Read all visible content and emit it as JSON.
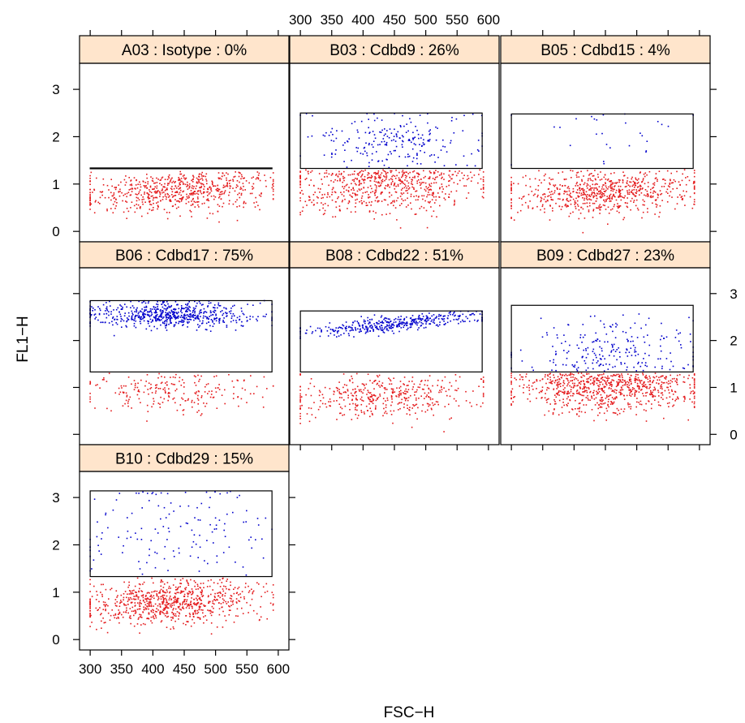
{
  "chart_data": {
    "type": "scatter",
    "xlabel": "FSC−H",
    "ylabel": "FL1−H",
    "x_ticks": [
      300,
      350,
      400,
      450,
      500,
      550,
      600
    ],
    "y_ticks": [
      0,
      1,
      2,
      3
    ],
    "xlim": [
      283,
      617
    ],
    "ylim": [
      -0.22,
      3.55
    ],
    "point_colors": {
      "outside_gate": "#e41a1c",
      "inside_gate": "#0000cc"
    },
    "strip_color": "#ffe5cc",
    "layout": {
      "columns": 3,
      "rows": 3
    },
    "panels": [
      {
        "strip": "A03 : Isotype : 0%",
        "well": "A03",
        "reagent": "Isotype",
        "percent_in_gate": 0,
        "gate": {
          "x": [
            300,
            590
          ],
          "y": [
            1.33,
            1.34
          ]
        },
        "n_outside": 650,
        "n_inside": 0,
        "red_cloud": {
          "x_mean": 440,
          "x_sd": 75,
          "y_mean": 0.85,
          "y_sd": 0.22,
          "y_slope": 0.0006,
          "y_max": 1.27
        },
        "blue_cloud": null
      },
      {
        "strip": "B03 : Cdbd9 : 26%",
        "well": "B03",
        "reagent": "Cdbd9",
        "percent_in_gate": 26,
        "gate": {
          "x": [
            300,
            590
          ],
          "y": [
            1.33,
            2.5
          ]
        },
        "n_outside": 620,
        "n_inside": 220,
        "red_cloud": {
          "x_mean": 440,
          "x_sd": 75,
          "y_mean": 0.95,
          "y_sd": 0.3,
          "y_slope": 0.0006,
          "y_max": 1.3
        },
        "blue_cloud": {
          "x_mean": 450,
          "x_sd": 65,
          "y_mean": 1.9,
          "y_sd": 0.3
        }
      },
      {
        "strip": "B05 : Cdbd15 : 4%",
        "well": "B05",
        "reagent": "Cdbd15",
        "percent_in_gate": 4,
        "gate": {
          "x": [
            300,
            590
          ],
          "y": [
            1.33,
            2.48
          ]
        },
        "n_outside": 700,
        "n_inside": 28,
        "red_cloud": {
          "x_mean": 450,
          "x_sd": 75,
          "y_mean": 0.82,
          "y_sd": 0.23,
          "y_slope": 0.0006,
          "y_max": 1.3
        },
        "blue_cloud": {
          "x_mean": 460,
          "x_sd": 80,
          "y_mean": 1.95,
          "y_sd": 0.35
        }
      },
      {
        "strip": "B06 : Cdbd17 : 75%",
        "well": "B06",
        "reagent": "Cdbd17",
        "percent_in_gate": 75,
        "gate": {
          "x": [
            300,
            590
          ],
          "y": [
            1.33,
            2.85
          ]
        },
        "n_outside": 220,
        "n_inside": 640,
        "red_cloud": {
          "x_mean": 430,
          "x_sd": 70,
          "y_mean": 0.9,
          "y_sd": 0.23,
          "y_slope": 0.0,
          "y_max": 1.3
        },
        "blue_cloud": {
          "x_mean": 430,
          "x_sd": 65,
          "y_mean": 2.55,
          "y_sd": 0.14
        }
      },
      {
        "strip": "B08 : Cdbd22 : 51%",
        "well": "B08",
        "reagent": "Cdbd22",
        "percent_in_gate": 51,
        "gate": {
          "x": [
            300,
            590
          ],
          "y": [
            1.33,
            2.63
          ]
        },
        "n_outside": 420,
        "n_inside": 420,
        "red_cloud": {
          "x_mean": 440,
          "x_sd": 75,
          "y_mean": 0.85,
          "y_sd": 0.25,
          "y_slope": 0.0005,
          "y_max": 1.3
        },
        "blue_cloud": {
          "x_mean": 450,
          "x_sd": 70,
          "y_mean": 2.35,
          "y_sd": 0.08,
          "y_slope": 0.0012
        }
      },
      {
        "strip": "B09 : Cdbd27 : 23%",
        "well": "B09",
        "reagent": "Cdbd27",
        "percent_in_gate": 23,
        "gate": {
          "x": [
            300,
            590
          ],
          "y": [
            1.33,
            2.75
          ]
        },
        "n_outside": 780,
        "n_inside": 230,
        "red_cloud": {
          "x_mean": 450,
          "x_sd": 75,
          "y_mean": 1.0,
          "y_sd": 0.28,
          "y_slope": 0.0,
          "y_max": 1.3
        },
        "blue_cloud": {
          "x_mean": 460,
          "x_sd": 70,
          "y_mean": 1.75,
          "y_sd": 0.33
        }
      },
      {
        "strip": "B10 : Cdbd29 : 15%",
        "well": "B10",
        "reagent": "Cdbd29",
        "percent_in_gate": 15,
        "gate": {
          "x": [
            300,
            590
          ],
          "y": [
            1.33,
            3.14
          ]
        },
        "n_outside": 780,
        "n_inside": 140,
        "red_cloud": {
          "x_mean": 430,
          "x_sd": 70,
          "y_mean": 0.8,
          "y_sd": 0.23,
          "y_slope": 0.0006,
          "y_max": 1.3
        },
        "blue_cloud": {
          "x_mean": 440,
          "x_sd": 75,
          "y_mean": 2.3,
          "y_sd": 0.55
        }
      }
    ]
  }
}
